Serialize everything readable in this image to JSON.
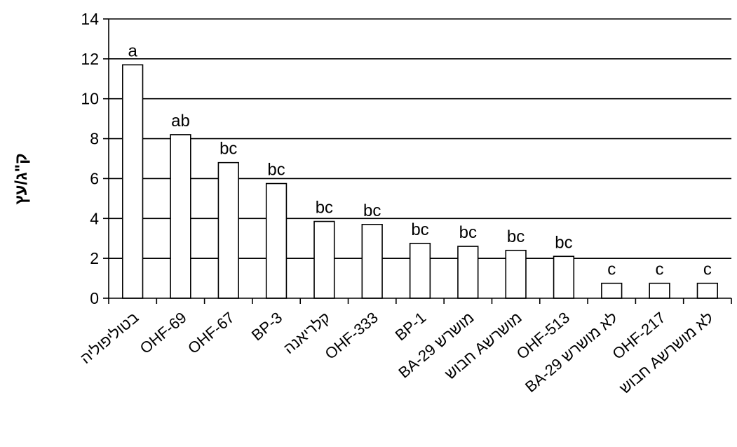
{
  "chart_data": {
    "type": "bar",
    "title": "",
    "xlabel": "",
    "ylabel": "ק\"ג/עץ",
    "ylim": [
      0,
      14
    ],
    "yticks": [
      0,
      2,
      4,
      6,
      8,
      10,
      12,
      14
    ],
    "grid": true,
    "legend": "none",
    "bar_fill": "#ffffff",
    "bar_stroke": "#000000",
    "categories": [
      "בטוליפוליה",
      "OHF-69",
      "OHF-67",
      "BP-3",
      "קלריאנה",
      "OHF-333",
      "BP-1",
      "BA-29 מושרש",
      "חבוש Aמושרש",
      "OHF-513",
      "BA-29 לא מושרש",
      "OHF-217",
      "חבוש Aלא מושרש"
    ],
    "values": [
      11.7,
      8.2,
      6.8,
      5.75,
      3.85,
      3.7,
      2.75,
      2.6,
      2.4,
      2.1,
      0.75,
      0.75,
      0.75
    ],
    "significance_labels": [
      "a",
      "ab",
      "bc",
      "bc",
      "bc",
      "bc",
      "bc",
      "bc",
      "bc",
      "bc",
      "c",
      "c",
      "c"
    ]
  }
}
